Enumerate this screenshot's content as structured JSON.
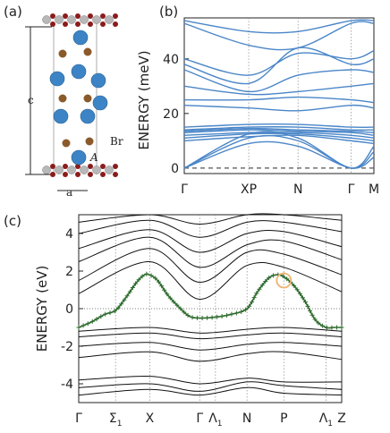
{
  "panel_labels": {
    "a": "(a)",
    "b": "(b)",
    "c": "(c)"
  },
  "structure": {
    "c_label": "c",
    "a_label": "a",
    "br_label": "Br",
    "A_label": "A"
  },
  "chart_data": [
    {
      "type": "line",
      "title": "",
      "ylabel": "ENERGY (meV)",
      "ylim": [
        -2,
        55
      ],
      "yticks": [
        0,
        20,
        40
      ],
      "xtick_labels": [
        "Γ",
        "XP",
        "N",
        "Γ",
        "M"
      ],
      "xtick_pos": [
        0,
        0.34,
        0.6,
        0.88,
        1.0
      ],
      "series_color": "#4a86c8",
      "baseline": {
        "y": 0,
        "style": "dashed",
        "color": "#555555"
      },
      "series": [
        {
          "x": [
            0,
            0.34,
            0.6,
            0.88,
            1.0
          ],
          "values": [
            0,
            9,
            8,
            0,
            4
          ]
        },
        {
          "x": [
            0,
            0.34,
            0.6,
            0.88,
            1.0
          ],
          "values": [
            0,
            11,
            10,
            0,
            6
          ]
        },
        {
          "x": [
            0,
            0.34,
            0.6,
            0.88,
            1.0
          ],
          "values": [
            0,
            12.5,
            11,
            0,
            8
          ]
        },
        {
          "x": [
            0,
            0.34,
            0.6,
            0.88,
            1.0
          ],
          "values": [
            10,
            11.5,
            12,
            10,
            9
          ]
        },
        {
          "x": [
            0,
            0.34,
            0.6,
            0.88,
            1.0
          ],
          "values": [
            11,
            12.5,
            12.5,
            11,
            10
          ]
        },
        {
          "x": [
            0,
            0.34,
            0.6,
            0.88,
            1.0
          ],
          "values": [
            12,
            13,
            13,
            12,
            11
          ]
        },
        {
          "x": [
            0,
            0.34,
            0.6,
            0.88,
            1.0
          ],
          "values": [
            13,
            14,
            13.5,
            13,
            12
          ]
        },
        {
          "x": [
            0,
            0.34,
            0.6,
            0.88,
            1.0
          ],
          "values": [
            13.5,
            14.5,
            14,
            13.5,
            13
          ]
        },
        {
          "x": [
            0,
            0.34,
            0.6,
            0.88,
            1.0
          ],
          "values": [
            14,
            15,
            15,
            14,
            14
          ]
        },
        {
          "x": [
            0,
            0.34,
            0.6,
            0.88,
            1.0
          ],
          "values": [
            15,
            16,
            16,
            15,
            15
          ]
        },
        {
          "x": [
            0,
            0.34,
            0.6,
            0.88,
            1.0
          ],
          "values": [
            23,
            22,
            21,
            23,
            22
          ]
        },
        {
          "x": [
            0,
            0.34,
            0.6,
            0.88,
            1.0
          ],
          "values": [
            25,
            25,
            26,
            25,
            24
          ]
        },
        {
          "x": [
            0,
            0.34,
            0.6,
            0.88,
            1.0
          ],
          "values": [
            30,
            27,
            28,
            30,
            31
          ]
        },
        {
          "x": [
            0,
            0.34,
            0.6,
            0.88,
            1.0
          ],
          "values": [
            36,
            28,
            34,
            36,
            35
          ]
        },
        {
          "x": [
            0,
            0.34,
            0.6,
            0.88,
            1.0
          ],
          "values": [
            38,
            31,
            44,
            38,
            40
          ]
        },
        {
          "x": [
            0,
            0.34,
            0.6,
            0.88,
            1.0
          ],
          "values": [
            40,
            34,
            42,
            40,
            43
          ]
        },
        {
          "x": [
            0,
            0.34,
            0.6,
            0.88,
            1.0
          ],
          "values": [
            53,
            45,
            44,
            53,
            53
          ]
        },
        {
          "x": [
            0,
            0.34,
            0.6,
            0.88,
            1.0
          ],
          "values": [
            54,
            50,
            50,
            54,
            54
          ]
        }
      ]
    },
    {
      "type": "line",
      "title": "",
      "ylabel": "ENERGY (eV)",
      "ylim": [
        -5,
        5
      ],
      "yticks": [
        -4,
        -2,
        0,
        2,
        4
      ],
      "xtick_labels": [
        "Γ",
        "Σ1",
        "X",
        "Γ",
        "Λ1",
        "N",
        "P",
        "Λ1",
        "Z"
      ],
      "xtick_pos": [
        0,
        0.14,
        0.27,
        0.46,
        0.52,
        0.64,
        0.78,
        0.94,
        1.0
      ],
      "reference_line": {
        "y": 0,
        "style": "dotted"
      },
      "highlight_series": {
        "color": "#2e6b2e",
        "marker": "+",
        "x": [
          0,
          0.05,
          0.1,
          0.14,
          0.18,
          0.22,
          0.25,
          0.27,
          0.3,
          0.34,
          0.38,
          0.42,
          0.46,
          0.52,
          0.58,
          0.64,
          0.68,
          0.72,
          0.75,
          0.78,
          0.82,
          0.86,
          0.9,
          0.94,
          0.97,
          1.0
        ],
        "values": [
          -1.0,
          -0.7,
          -0.3,
          -0.1,
          0.6,
          1.4,
          1.8,
          1.8,
          1.5,
          0.7,
          0.1,
          -0.4,
          -0.5,
          -0.45,
          -0.3,
          0.0,
          0.9,
          1.6,
          1.8,
          1.7,
          1.2,
          0.4,
          -0.6,
          -1.0,
          -1.0,
          -1.0
        ]
      },
      "highlight_circle": {
        "x": 0.78,
        "y": 1.5,
        "color": "#f0b26e"
      },
      "band_color": "#111111",
      "series": [
        {
          "x": [
            0,
            0.27,
            0.46,
            0.64,
            0.78,
            1.0
          ],
          "values": [
            -4.6,
            -4.3,
            -4.6,
            -4.2,
            -4.5,
            -4.6
          ]
        },
        {
          "x": [
            0,
            0.27,
            0.46,
            0.64,
            0.78,
            1.0
          ],
          "values": [
            -4.2,
            -4.0,
            -4.4,
            -3.9,
            -4.1,
            -4.3
          ]
        },
        {
          "x": [
            0,
            0.27,
            0.46,
            0.64,
            0.78,
            1.0
          ],
          "values": [
            -3.8,
            -3.6,
            -4.0,
            -3.7,
            -3.9,
            -3.9
          ]
        },
        {
          "x": [
            0,
            0.27,
            0.46,
            0.64,
            0.78,
            1.0
          ],
          "values": [
            -2.6,
            -2.3,
            -2.8,
            -2.4,
            -2.3,
            -2.7
          ]
        },
        {
          "x": [
            0,
            0.27,
            0.46,
            0.64,
            0.78,
            1.0
          ],
          "values": [
            -2.0,
            -1.8,
            -2.2,
            -1.9,
            -1.8,
            -2.0
          ]
        },
        {
          "x": [
            0,
            0.27,
            0.46,
            0.64,
            0.78,
            1.0
          ],
          "values": [
            -1.5,
            -1.3,
            -1.6,
            -1.4,
            -1.3,
            -1.5
          ]
        },
        {
          "x": [
            0,
            0.27,
            0.46,
            0.64,
            0.78,
            1.0
          ],
          "values": [
            -1.2,
            -1.0,
            -1.3,
            -1.1,
            -1.0,
            -1.2
          ]
        },
        {
          "x": [
            0,
            0.27,
            0.46,
            0.64,
            0.78,
            1.0
          ],
          "values": [
            0.8,
            2.5,
            0.5,
            2.3,
            2.2,
            0.9
          ]
        },
        {
          "x": [
            0,
            0.27,
            0.46,
            0.64,
            0.78,
            1.0
          ],
          "values": [
            1.5,
            3.2,
            1.4,
            3.0,
            2.9,
            1.8
          ]
        },
        {
          "x": [
            0,
            0.27,
            0.46,
            0.64,
            0.78,
            1.0
          ],
          "values": [
            2.5,
            3.8,
            2.2,
            3.4,
            3.6,
            2.6
          ]
        },
        {
          "x": [
            0,
            0.27,
            0.46,
            0.64,
            0.78,
            1.0
          ],
          "values": [
            3.2,
            4.2,
            3.0,
            4.0,
            4.1,
            3.3
          ]
        },
        {
          "x": [
            0,
            0.27,
            0.46,
            0.64,
            0.78,
            1.0
          ],
          "values": [
            4.0,
            4.7,
            3.8,
            4.6,
            4.6,
            4.1
          ]
        },
        {
          "x": [
            0,
            0.27,
            0.46,
            0.64,
            0.78,
            1.0
          ],
          "values": [
            4.6,
            5.0,
            4.5,
            5.0,
            5.0,
            4.7
          ]
        }
      ]
    }
  ]
}
